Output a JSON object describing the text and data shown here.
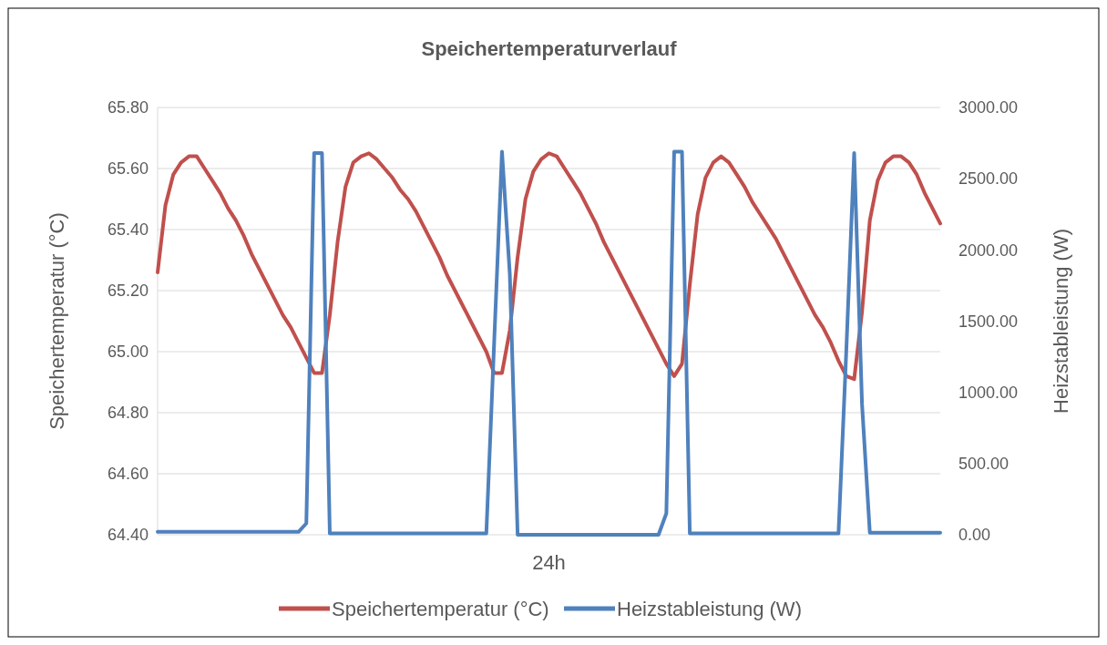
{
  "chart_data": {
    "type": "line",
    "title": "Speichertemperaturverlauf",
    "xlabel": "24h",
    "ylabel": "Speichertemperatur (°C)",
    "y2label": "Heizstableistung (W)",
    "categories": [
      null,
      null,
      null,
      null,
      null,
      null,
      null,
      null,
      null,
      null,
      null,
      null,
      null,
      null,
      null,
      null,
      null,
      null,
      null,
      null,
      null,
      null,
      null,
      null,
      null,
      null,
      null,
      null,
      null,
      null,
      null,
      null,
      null,
      null,
      null,
      null,
      null,
      null,
      null,
      null,
      null,
      null,
      null,
      null,
      null,
      null,
      null,
      null,
      null,
      null,
      null,
      null,
      null,
      null,
      null,
      null,
      null,
      null,
      null,
      null,
      null,
      null,
      null,
      null,
      null,
      null,
      null,
      null,
      null,
      null,
      null,
      null,
      null,
      null,
      null,
      null,
      null,
      null,
      null,
      null,
      null,
      null,
      null,
      null,
      null,
      null,
      null,
      null,
      null,
      null,
      null,
      null,
      null,
      null,
      null,
      null,
      null,
      null,
      null,
      null,
      null
    ],
    "series": [
      {
        "name": "Speichertemperatur (°C)",
        "color": "#c0504d",
        "values": [
          65.26,
          65.48,
          65.58,
          65.62,
          65.64,
          65.64,
          65.6,
          65.56,
          65.52,
          65.47,
          65.43,
          65.38,
          65.32,
          65.27,
          65.22,
          65.17,
          65.12,
          65.08,
          65.03,
          64.98,
          64.93,
          64.93,
          65.12,
          65.36,
          65.54,
          65.62,
          65.64,
          65.65,
          65.63,
          65.6,
          65.57,
          65.53,
          65.5,
          65.46,
          65.41,
          65.36,
          65.31,
          65.25,
          65.2,
          65.15,
          65.1,
          65.05,
          65.0,
          64.93,
          64.93,
          65.07,
          65.31,
          65.5,
          65.59,
          65.63,
          65.65,
          65.64,
          65.6,
          65.56,
          65.52,
          65.47,
          65.42,
          65.36,
          65.31,
          65.26,
          65.21,
          65.16,
          65.11,
          65.06,
          65.01,
          64.96,
          64.92,
          64.96,
          65.22,
          65.45,
          65.57,
          65.62,
          65.64,
          65.62,
          65.58,
          65.54,
          65.49,
          65.45,
          65.41,
          65.37,
          65.32,
          65.27,
          65.22,
          65.17,
          65.12,
          65.08,
          65.03,
          64.97,
          64.92,
          64.91,
          65.13,
          65.43,
          65.56,
          65.62,
          65.64,
          65.64,
          65.62,
          65.58,
          65.52,
          65.47,
          65.42
        ]
      },
      {
        "name": "Heizstableistung (W)",
        "color": "#4f81bd",
        "axis": "y2",
        "values": [
          20,
          20,
          20,
          20,
          20,
          20,
          20,
          20,
          20,
          20,
          20,
          20,
          20,
          20,
          20,
          20,
          20,
          20,
          20,
          80,
          2680,
          2680,
          10,
          10,
          10,
          10,
          10,
          10,
          10,
          10,
          10,
          10,
          10,
          10,
          10,
          10,
          10,
          10,
          10,
          10,
          10,
          10,
          10,
          1350,
          2690,
          1830,
          0,
          0,
          0,
          0,
          0,
          0,
          0,
          0,
          0,
          0,
          0,
          0,
          0,
          0,
          0,
          0,
          0,
          0,
          0,
          150,
          2690,
          2690,
          10,
          10,
          10,
          10,
          10,
          10,
          10,
          10,
          10,
          10,
          10,
          10,
          10,
          10,
          10,
          10,
          10,
          10,
          10,
          10,
          1300,
          2680,
          920,
          15,
          15,
          15,
          15,
          15,
          15,
          15,
          15,
          15,
          15
        ]
      }
    ],
    "ylim": [
      64.4,
      65.8
    ],
    "yticks": [
      {
        "value": 64.4,
        "label": "64.40"
      },
      {
        "value": 64.6,
        "label": "64.60"
      },
      {
        "value": 64.8,
        "label": "64.80"
      },
      {
        "value": 65,
        "label": "65.00"
      },
      {
        "value": 65.2,
        "label": "65.20"
      },
      {
        "value": 65.4,
        "label": "65.40"
      },
      {
        "value": 65.6,
        "label": "65.60"
      },
      {
        "value": 65.8,
        "label": "65.80"
      }
    ],
    "y2lim": [
      0,
      3000
    ],
    "y2ticks": [
      {
        "value": 0,
        "label": "0.00"
      },
      {
        "value": 500,
        "label": "500.00"
      },
      {
        "value": 1000,
        "label": "1000.00"
      },
      {
        "value": 1500,
        "label": "1500.00"
      },
      {
        "value": 2000,
        "label": "2000.00"
      },
      {
        "value": 2500,
        "label": "2500.00"
      },
      {
        "value": 3000,
        "label": "3000.00"
      }
    ],
    "grid": "y",
    "legend": "bottom",
    "marker": "none",
    "line_style": "solid"
  }
}
